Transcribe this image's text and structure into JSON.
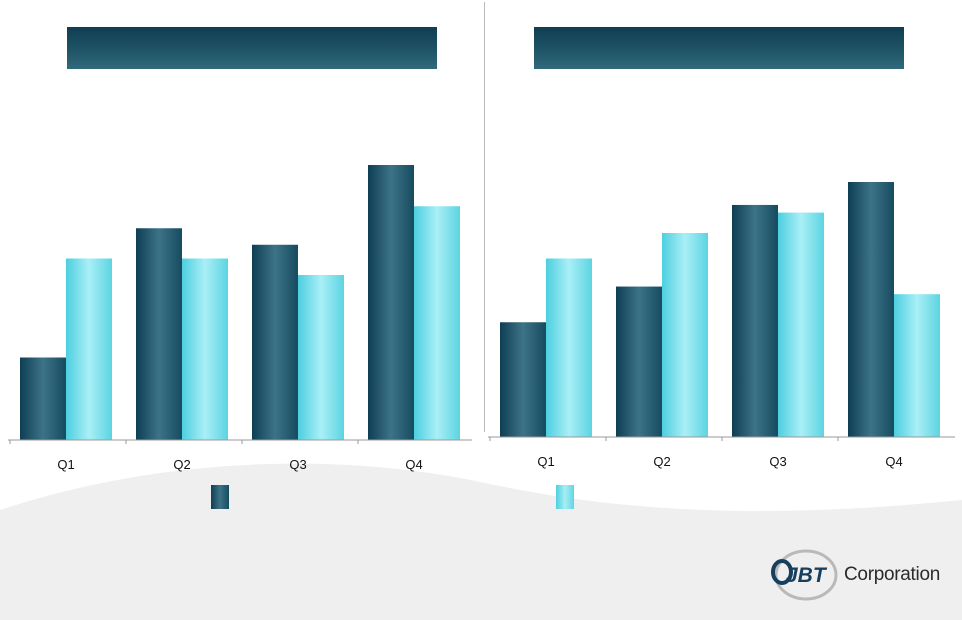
{
  "colors": {
    "series_dark": "#1e5468",
    "series_light": "#7be0ec",
    "title_band": "#1a4d60",
    "wave": "#eeeeee"
  },
  "legend": {
    "items": [
      {
        "icon": "dark-teal-swatch",
        "label": ""
      },
      {
        "icon": "light-cyan-swatch",
        "label": ""
      }
    ]
  },
  "logo": {
    "text": "Corporation",
    "mark_text": "JBT",
    "icon": "jbt-logo-icon"
  },
  "chart_data": [
    {
      "type": "bar",
      "title": "",
      "categories": [
        "Q1",
        "Q2",
        "Q3",
        "Q4"
      ],
      "series": [
        {
          "values": [
            30,
            77,
            71,
            100
          ]
        },
        {
          "values": [
            66,
            66,
            60,
            85
          ]
        }
      ],
      "ylim": [
        0,
        100
      ],
      "grid": false,
      "legend": "bottom"
    },
    {
      "type": "bar",
      "title": "",
      "categories": [
        "Q1",
        "Q2",
        "Q3",
        "Q4"
      ],
      "series": [
        {
          "values": [
            45,
            59,
            91,
            100
          ]
        },
        {
          "values": [
            70,
            80,
            88,
            56
          ]
        }
      ],
      "ylim": [
        0,
        100
      ],
      "grid": false,
      "legend": "bottom"
    }
  ]
}
